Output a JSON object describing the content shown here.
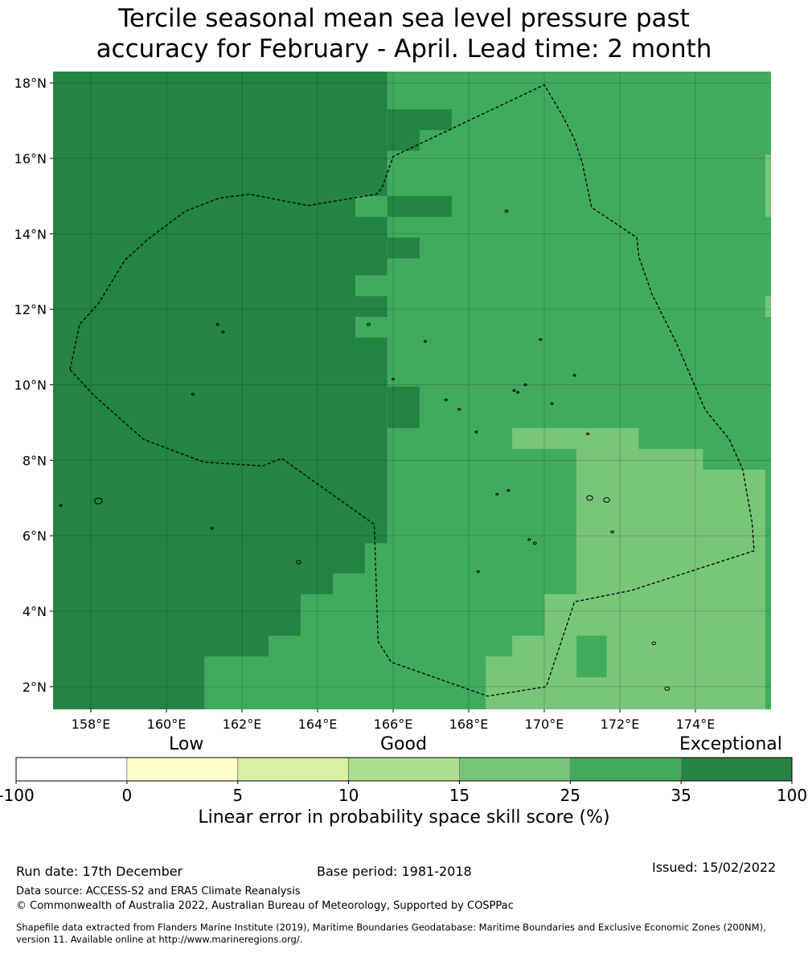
{
  "title": {
    "line1": "Tercile seasonal mean sea level pressure past",
    "line2": "accuracy for February - April. Lead time: 2 month"
  },
  "map": {
    "lon_range": [
      157.0,
      176.0
    ],
    "lat_range": [
      1.4,
      18.3
    ],
    "lat_ticks": [
      {
        "value": 18,
        "label": "18°N"
      },
      {
        "value": 16,
        "label": "16°N"
      },
      {
        "value": 14,
        "label": "14°N"
      },
      {
        "value": 12,
        "label": "12°N"
      },
      {
        "value": 10,
        "label": "10°N"
      },
      {
        "value": 8,
        "label": "8°N"
      },
      {
        "value": 6,
        "label": "6°N"
      },
      {
        "value": 4,
        "label": "4°N"
      },
      {
        "value": 2,
        "label": "2°N"
      }
    ],
    "lon_ticks": [
      {
        "value": 158,
        "label": "158°E"
      },
      {
        "value": 160,
        "label": "160°E"
      },
      {
        "value": 162,
        "label": "162°E"
      },
      {
        "value": 164,
        "label": "164°E"
      },
      {
        "value": 166,
        "label": "166°E"
      },
      {
        "value": 168,
        "label": "168°E"
      },
      {
        "value": 170,
        "label": "170°E"
      },
      {
        "value": 172,
        "label": "172°E"
      },
      {
        "value": 174,
        "label": "174°E"
      }
    ],
    "gridlines": true,
    "colors": {
      "dark": "#238443",
      "mid": "#41ab5d",
      "light": "#78c679"
    },
    "skill_regions": [
      {
        "category": "35-100",
        "polygon": [
          [
            157.0,
            18.3
          ],
          [
            165.85,
            18.3
          ],
          [
            165.85,
            1.4
          ],
          [
            157.0,
            1.4
          ]
        ]
      },
      {
        "category": "25-35",
        "polygon": [
          [
            165.85,
            18.3
          ],
          [
            176.0,
            18.3
          ],
          [
            176.0,
            1.4
          ],
          [
            165.85,
            1.4
          ]
        ]
      },
      {
        "category": "25-35",
        "polygon": [
          [
            161.0,
            1.4
          ],
          [
            161.0,
            2.8
          ],
          [
            162.7,
            2.8
          ],
          [
            162.7,
            3.35
          ],
          [
            163.55,
            3.35
          ],
          [
            163.55,
            4.45
          ],
          [
            164.4,
            4.45
          ],
          [
            164.4,
            5.0
          ],
          [
            165.25,
            5.0
          ],
          [
            165.25,
            5.8
          ],
          [
            165.85,
            5.8
          ],
          [
            165.85,
            1.4
          ]
        ]
      },
      {
        "category": "25-35",
        "polygon": [
          [
            165.0,
            15.0
          ],
          [
            165.85,
            15.0
          ],
          [
            165.85,
            14.45
          ],
          [
            165.0,
            14.45
          ]
        ]
      },
      {
        "category": "25-35",
        "polygon": [
          [
            165.0,
            12.9
          ],
          [
            165.85,
            12.9
          ],
          [
            165.85,
            12.35
          ],
          [
            165.0,
            12.35
          ]
        ]
      },
      {
        "category": "25-35",
        "polygon": [
          [
            165.0,
            11.8
          ],
          [
            165.85,
            11.8
          ],
          [
            165.85,
            11.25
          ],
          [
            165.0,
            11.25
          ]
        ]
      },
      {
        "category": "35-100",
        "polygon": [
          [
            165.85,
            17.3
          ],
          [
            167.55,
            17.3
          ],
          [
            167.55,
            16.75
          ],
          [
            166.7,
            16.75
          ],
          [
            166.7,
            16.2
          ],
          [
            165.85,
            16.2
          ]
        ]
      },
      {
        "category": "35-100",
        "polygon": [
          [
            165.85,
            15.0
          ],
          [
            167.55,
            15.0
          ],
          [
            167.55,
            14.45
          ],
          [
            165.85,
            14.45
          ]
        ]
      },
      {
        "category": "35-100",
        "polygon": [
          [
            165.85,
            13.9
          ],
          [
            166.7,
            13.9
          ],
          [
            166.7,
            13.35
          ],
          [
            165.85,
            13.35
          ]
        ]
      },
      {
        "category": "35-100",
        "polygon": [
          [
            165.85,
            9.95
          ],
          [
            166.7,
            9.95
          ],
          [
            166.7,
            8.85
          ],
          [
            165.85,
            8.85
          ]
        ]
      },
      {
        "category": "15-25",
        "polygon": [
          [
            169.15,
            8.85
          ],
          [
            172.5,
            8.85
          ],
          [
            172.5,
            8.3
          ],
          [
            174.2,
            8.3
          ],
          [
            174.2,
            7.75
          ],
          [
            175.85,
            7.75
          ],
          [
            175.85,
            1.4
          ],
          [
            168.45,
            1.4
          ],
          [
            168.45,
            2.8
          ],
          [
            169.15,
            2.8
          ],
          [
            169.15,
            3.35
          ],
          [
            170.0,
            3.35
          ],
          [
            170.0,
            4.45
          ],
          [
            170.85,
            4.45
          ],
          [
            170.85,
            8.3
          ],
          [
            169.15,
            8.3
          ]
        ]
      },
      {
        "category": "25-35",
        "polygon": [
          [
            170.85,
            3.35
          ],
          [
            171.65,
            3.35
          ],
          [
            171.65,
            2.25
          ],
          [
            170.85,
            2.25
          ]
        ]
      },
      {
        "category": "15-25",
        "polygon": [
          [
            175.85,
            16.1
          ],
          [
            176.0,
            16.1
          ],
          [
            176.0,
            14.45
          ],
          [
            175.85,
            14.45
          ]
        ]
      },
      {
        "category": "15-25",
        "polygon": [
          [
            175.85,
            12.35
          ],
          [
            176.0,
            12.35
          ],
          [
            176.0,
            11.8
          ],
          [
            175.85,
            11.8
          ]
        ]
      }
    ],
    "boundary_lines": [
      [
        [
          157.45,
          10.4
        ],
        [
          158.1,
          9.7
        ],
        [
          159.4,
          8.55
        ],
        [
          161.0,
          7.95
        ],
        [
          162.55,
          7.85
        ],
        [
          163.05,
          8.05
        ],
        [
          165.5,
          6.3
        ],
        [
          165.6,
          3.2
        ],
        [
          165.95,
          2.65
        ],
        [
          168.5,
          1.75
        ],
        [
          170.05,
          2.0
        ],
        [
          170.8,
          4.25
        ],
        [
          172.3,
          4.55
        ],
        [
          175.55,
          5.6
        ],
        [
          175.5,
          6.35
        ],
        [
          175.25,
          7.75
        ],
        [
          174.9,
          8.55
        ],
        [
          174.25,
          9.35
        ],
        [
          173.5,
          11.1
        ],
        [
          172.85,
          12.4
        ],
        [
          172.5,
          13.4
        ],
        [
          172.45,
          13.9
        ],
        [
          171.25,
          14.7
        ],
        [
          171.0,
          15.9
        ],
        [
          170.8,
          16.5
        ],
        [
          170.5,
          17.1
        ],
        [
          170.0,
          17.95
        ],
        [
          166.0,
          16.05
        ],
        [
          165.7,
          15.2
        ],
        [
          165.55,
          15.05
        ],
        [
          163.75,
          14.75
        ],
        [
          162.2,
          15.05
        ],
        [
          161.4,
          14.95
        ],
        [
          160.5,
          14.6
        ],
        [
          159.5,
          13.85
        ],
        [
          158.9,
          13.3
        ],
        [
          158.2,
          12.15
        ],
        [
          157.7,
          11.6
        ],
        [
          157.45,
          10.4
        ]
      ]
    ],
    "islands": [
      {
        "center": [
          157.2,
          6.8
        ],
        "r": 0.02
      },
      {
        "center": [
          158.2,
          6.92
        ],
        "r": 0.1
      },
      {
        "center": [
          160.7,
          9.75
        ],
        "r": 0.02
      },
      {
        "center": [
          161.2,
          6.2
        ],
        "r": 0.03
      },
      {
        "center": [
          161.35,
          11.6
        ],
        "r": 0.03
      },
      {
        "center": [
          161.5,
          11.4
        ],
        "r": 0.03
      },
      {
        "center": [
          163.5,
          5.3
        ],
        "r": 0.06
      },
      {
        "center": [
          165.35,
          11.6
        ],
        "r": 0.04
      },
      {
        "center": [
          166.0,
          10.15
        ],
        "r": 0.03
      },
      {
        "center": [
          166.85,
          11.15
        ],
        "r": 0.03
      },
      {
        "center": [
          167.4,
          9.6
        ],
        "r": 0.03
      },
      {
        "center": [
          167.75,
          9.35
        ],
        "r": 0.03
      },
      {
        "center": [
          168.2,
          8.75
        ],
        "r": 0.03
      },
      {
        "center": [
          168.25,
          5.05
        ],
        "r": 0.03
      },
      {
        "center": [
          168.75,
          7.1
        ],
        "r": 0.03
      },
      {
        "center": [
          169.0,
          14.6
        ],
        "r": 0.04
      },
      {
        "center": [
          169.05,
          7.2
        ],
        "r": 0.03
      },
      {
        "center": [
          169.2,
          9.85
        ],
        "r": 0.03
      },
      {
        "center": [
          169.3,
          9.8
        ],
        "r": 0.03
      },
      {
        "center": [
          169.5,
          10.0
        ],
        "r": 0.03
      },
      {
        "center": [
          169.6,
          5.9
        ],
        "r": 0.03
      },
      {
        "center": [
          169.75,
          5.8
        ],
        "r": 0.04
      },
      {
        "center": [
          169.9,
          11.2
        ],
        "r": 0.03
      },
      {
        "center": [
          170.2,
          9.5
        ],
        "r": 0.03
      },
      {
        "center": [
          170.8,
          10.25
        ],
        "r": 0.03
      },
      {
        "center": [
          171.15,
          8.7
        ],
        "r": 0.03
      },
      {
        "center": [
          171.2,
          7.0
        ],
        "r": 0.08
      },
      {
        "center": [
          171.65,
          6.95
        ],
        "r": 0.08
      },
      {
        "center": [
          171.8,
          6.1
        ],
        "r": 0.04
      },
      {
        "center": [
          172.9,
          3.15
        ],
        "r": 0.05
      },
      {
        "center": [
          173.25,
          1.95
        ],
        "r": 0.06
      }
    ]
  },
  "colorbar": {
    "headings": {
      "low": "Low",
      "good": "Good",
      "exceptional": "Exceptional"
    },
    "boundaries": [
      "-100",
      "0",
      "5",
      "10",
      "15",
      "25",
      "35",
      "100"
    ],
    "colors": [
      "#ffffff",
      "#ffffcc",
      "#d9f0a3",
      "#addd8e",
      "#78c679",
      "#41ab5d",
      "#238443"
    ],
    "label": "Linear error in probability space skill score (%)"
  },
  "footer": {
    "run_date": "Run date: 17th December",
    "base_period": "Base period: 1981-2018",
    "issued": "Issued: 15/02/2022",
    "data_source": "Data source: ACCESS-S2 and ERA5 Climate Reanalysis",
    "copyright": "© Commonwealth of Australia 2022, Australian Bureau of Meteorology, Supported by COSPPac",
    "shapefile_line1": "Shapefile data extracted from Flanders Marine Institute (2019), Maritime Boundaries Geodatabase: Maritime Boundaries and Exclusive Economic Zones (200NM),",
    "shapefile_line2": "version 11. Available online at http://www.marineregions.org/."
  }
}
